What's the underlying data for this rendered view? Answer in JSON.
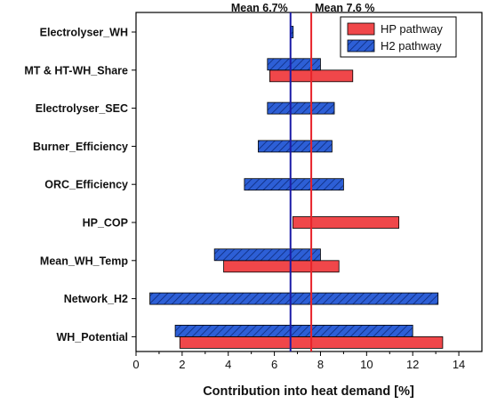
{
  "chart_data": {
    "type": "bar",
    "orientation": "horizontal",
    "xlabel": "Contribution into heat demand [%]",
    "xlim": [
      0,
      15
    ],
    "xticks": [
      0,
      2,
      4,
      6,
      8,
      10,
      12,
      14
    ],
    "categories": [
      "Electrolyser_WH",
      "MT & HT-WH_Share",
      "Electrolyser_SEC",
      "Burner_Efficiency",
      "ORC_Efficiency",
      "HP_COP",
      "Mean_WH_Temp",
      "Network_H2",
      "WH_Potential"
    ],
    "series": [
      {
        "name": "HP pathway",
        "color": "#f0474a",
        "pattern": "solid",
        "ranges": [
          null,
          [
            5.8,
            9.4
          ],
          null,
          null,
          null,
          [
            6.8,
            11.4
          ],
          [
            3.8,
            8.8
          ],
          null,
          [
            1.9,
            13.3
          ]
        ]
      },
      {
        "name": "H2 pathway",
        "color": "#2d5fd6",
        "pattern": "hatched",
        "ranges": [
          [
            6.7,
            6.8
          ],
          [
            5.7,
            8.0
          ],
          [
            5.7,
            8.6
          ],
          [
            5.3,
            8.5
          ],
          [
            4.7,
            9.0
          ],
          null,
          [
            3.4,
            8.0
          ],
          [
            0.6,
            13.1
          ],
          [
            1.7,
            12.0
          ]
        ]
      }
    ],
    "reference_lines": [
      {
        "label": "Mean 6.7%",
        "value": 6.7,
        "color": "#1a1aa6"
      },
      {
        "label": "Mean 7.6 %",
        "value": 7.6,
        "color": "#e8232a"
      }
    ],
    "legend_position": "top-right"
  }
}
